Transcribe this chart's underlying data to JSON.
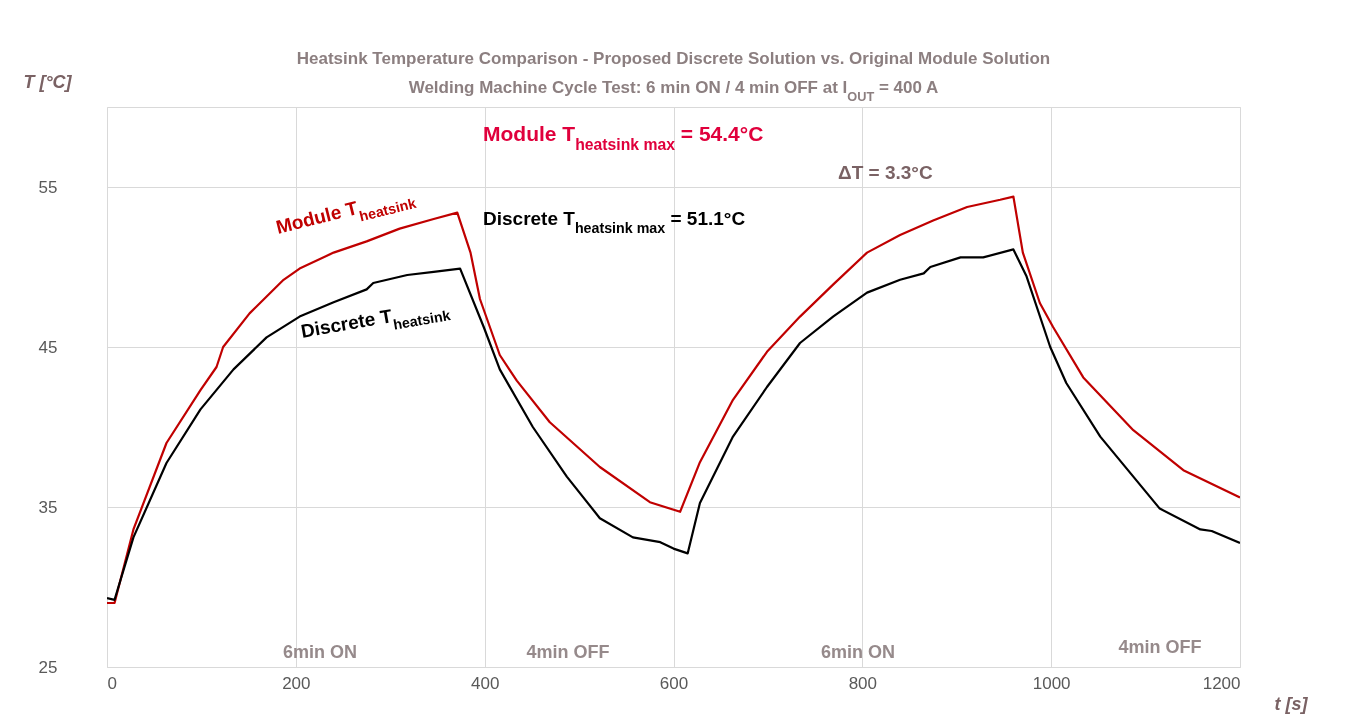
{
  "chart_data": {
    "type": "line",
    "title": "Heatsink Temperature Comparison - Proposed Discrete Solution vs. Original Module Solution",
    "subtitle": "Welding Machine Cycle Test: 6 min ON / 4 min OFF at I$_{OUT}$ =  400 A",
    "xlabel": "t [s]",
    "ylabel": "T [°C]",
    "xlim": [
      0,
      1200
    ],
    "xticks": [
      0,
      200,
      400,
      600,
      800,
      1000,
      1200
    ],
    "ylim": [
      25,
      60
    ],
    "yticks": [
      25,
      35,
      45,
      55
    ],
    "grid": true,
    "series": [
      {
        "name": "Module T$_{heatsink}$",
        "color": "#c00000",
        "x": [
          0,
          8,
          28,
          63,
          99,
          116,
          123,
          151,
          187,
          204,
          240,
          275,
          310,
          346,
          371,
          385,
          395,
          416,
          434,
          469,
          522,
          575,
          607,
          628,
          663,
          699,
          734,
          769,
          805,
          840,
          875,
          911,
          946,
          960,
          970,
          988,
          1002,
          1034,
          1087,
          1140,
          1200
        ],
        "values": [
          29.0,
          29.0,
          33.6,
          39.0,
          42.3,
          43.75,
          45.0,
          47.1,
          49.2,
          49.9,
          50.9,
          51.6,
          52.4,
          53.0,
          53.4,
          50.9,
          48.0,
          44.5,
          42.9,
          40.3,
          37.5,
          35.3,
          34.7,
          37.8,
          41.7,
          44.7,
          46.9,
          48.9,
          50.9,
          52.0,
          52.9,
          53.75,
          54.2,
          54.4,
          50.9,
          47.75,
          46.25,
          43.1,
          39.8,
          37.3,
          35.6
        ]
      },
      {
        "name": "Discrete T$_{heatsink}$",
        "color": "#000000",
        "x": [
          0,
          8,
          28,
          63,
          99,
          134,
          169,
          204,
          240,
          275,
          282,
          318,
          346,
          374,
          399,
          416,
          451,
          487,
          522,
          557,
          586,
          600,
          615,
          628,
          663,
          699,
          734,
          769,
          805,
          840,
          865,
          872,
          904,
          928,
          960,
          974,
          999,
          1016,
          1052,
          1087,
          1115,
          1158,
          1170,
          1200
        ],
        "values": [
          29.3,
          29.2,
          33.1,
          37.75,
          41.1,
          43.6,
          45.6,
          46.9,
          47.8,
          48.6,
          49.0,
          49.5,
          49.7,
          49.9,
          46.25,
          43.6,
          40.0,
          36.9,
          34.3,
          33.1,
          32.8,
          32.4,
          32.1,
          35.25,
          39.4,
          42.5,
          45.25,
          46.9,
          48.4,
          49.2,
          49.6,
          50.0,
          50.6,
          50.6,
          51.1,
          49.4,
          45.0,
          42.75,
          39.4,
          36.9,
          34.9,
          33.6,
          33.5,
          32.75
        ]
      }
    ],
    "annotations": [
      "Module T$_{heatsink max}$ = 54.4°C",
      "ΔT = 3.3°C",
      "Discrete T$_{heatsink max}$ = 51.1°C",
      "6min ON",
      "4min OFF",
      "6min ON",
      "4min OFF"
    ]
  }
}
